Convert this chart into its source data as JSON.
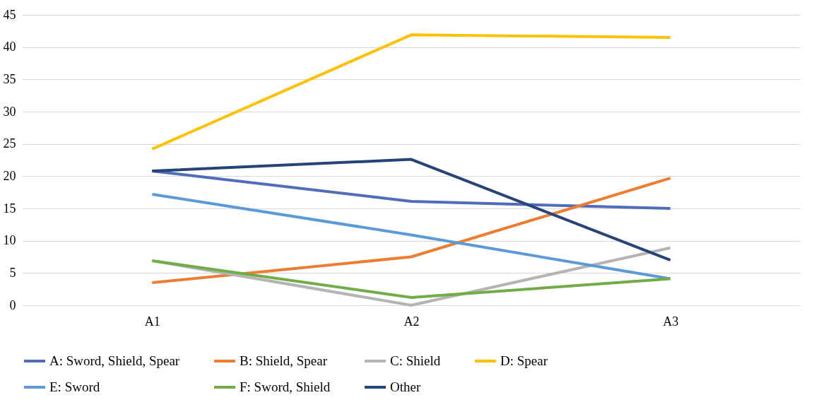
{
  "chart_data": {
    "type": "line",
    "categories": [
      "A1",
      "A2",
      "A3"
    ],
    "series": [
      {
        "name": "A: Sword, Shield, Spear",
        "color": "#4f6db8",
        "values": [
          20.8,
          16.1,
          15.0
        ]
      },
      {
        "name": "B: Shield, Spear",
        "color": "#ed7d31",
        "values": [
          3.5,
          7.5,
          19.7
        ]
      },
      {
        "name": "C: Shield",
        "color": "#b4b4b4",
        "values": [
          6.9,
          0,
          8.9
        ]
      },
      {
        "name": "D: Spear",
        "color": "#ffc000",
        "values": [
          24.2,
          41.9,
          41.5
        ]
      },
      {
        "name": "E: Sword",
        "color": "#5b9bd5",
        "values": [
          17.2,
          10.9,
          4.1
        ]
      },
      {
        "name": "F: Sword, Shield",
        "color": "#70ad47",
        "values": [
          6.9,
          1.2,
          4.1
        ]
      },
      {
        "name": "Other",
        "color": "#264478",
        "values": [
          20.8,
          22.6,
          7.0
        ]
      }
    ],
    "ylim": [
      0,
      45
    ],
    "yticks": [
      0,
      5,
      10,
      15,
      20,
      25,
      30,
      35,
      40,
      45
    ],
    "grid": "y",
    "legend": "bottom",
    "marker": "none",
    "line_style": "solid"
  }
}
